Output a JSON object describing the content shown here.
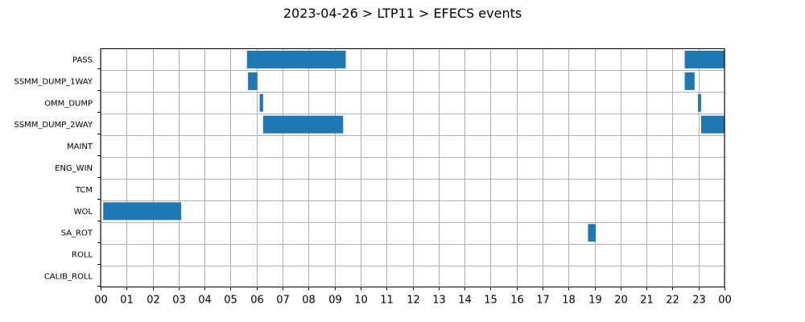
{
  "chart_data": {
    "type": "gantt",
    "title": "2023-04-26 > LTP11 > EFECS events",
    "xlabel": "",
    "ylabel": "",
    "xlim": [
      0,
      24
    ],
    "x_unit": "hour of day",
    "x_tick_labels": [
      "00",
      "01",
      "02",
      "03",
      "04",
      "05",
      "06",
      "07",
      "08",
      "09",
      "10",
      "11",
      "12",
      "13",
      "14",
      "15",
      "16",
      "17",
      "18",
      "19",
      "20",
      "21",
      "22",
      "23",
      "00"
    ],
    "categories": [
      "PASS",
      "SSMM_DUMP_1WAY",
      "OMM_DUMP",
      "SSMM_DUMP_2WAY",
      "MAINT",
      "ENG_WIN",
      "TCM",
      "WOL",
      "SA_ROT",
      "ROLL",
      "CALIB_ROLL"
    ],
    "grid": true,
    "bar_color": "#1f77b4",
    "events": [
      {
        "category": "PASS",
        "start": 5.63,
        "end": 9.43
      },
      {
        "category": "PASS",
        "start": 22.47,
        "end": 24.0
      },
      {
        "category": "SSMM_DUMP_1WAY",
        "start": 5.67,
        "end": 6.03
      },
      {
        "category": "SSMM_DUMP_1WAY",
        "start": 22.47,
        "end": 22.85
      },
      {
        "category": "OMM_DUMP",
        "start": 6.12,
        "end": 6.25
      },
      {
        "category": "OMM_DUMP",
        "start": 22.98,
        "end": 23.1
      },
      {
        "category": "SSMM_DUMP_2WAY",
        "start": 6.25,
        "end": 9.33
      },
      {
        "category": "SSMM_DUMP_2WAY",
        "start": 23.1,
        "end": 24.0
      },
      {
        "category": "WOL",
        "start": 0.1,
        "end": 3.1
      },
      {
        "category": "SA_ROT",
        "start": 18.75,
        "end": 19.05
      }
    ]
  }
}
